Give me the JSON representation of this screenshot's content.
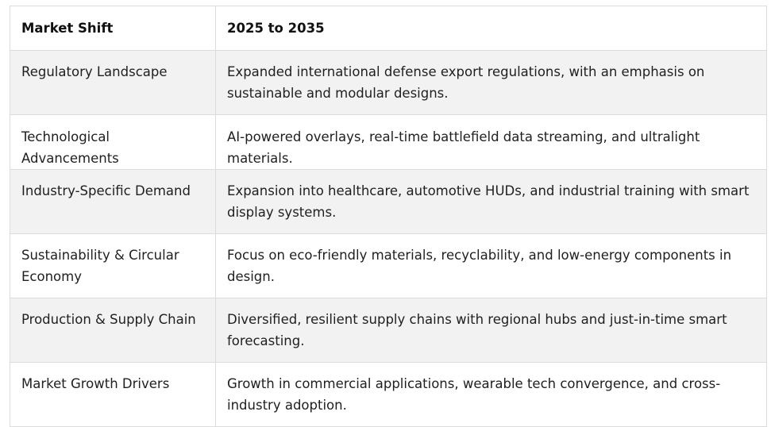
{
  "table": {
    "headers": [
      "Market Shift",
      "2025 to 2035"
    ],
    "rows": [
      [
        "Regulatory Landscape",
        "Expanded international defense export regulations, with an emphasis on sustainable and modular designs."
      ],
      [
        "Technological Advancements",
        "AI-powered overlays, real-time battlefield data streaming, and ultralight materials."
      ],
      [
        "Industry-Specific Demand",
        "Expansion into healthcare, automotive HUDs, and industrial training with smart display systems."
      ],
      [
        "Sustainability & Circular Economy",
        "Focus on eco-friendly materials, recyclability, and low-energy components in design."
      ],
      [
        "Production & Supply Chain",
        "Diversified, resilient supply chains with regional hubs and just-in-time smart forecasting."
      ],
      [
        "Market Growth Drivers",
        "Growth in commercial applications, wearable tech convergence, and cross-industry adoption."
      ]
    ]
  }
}
